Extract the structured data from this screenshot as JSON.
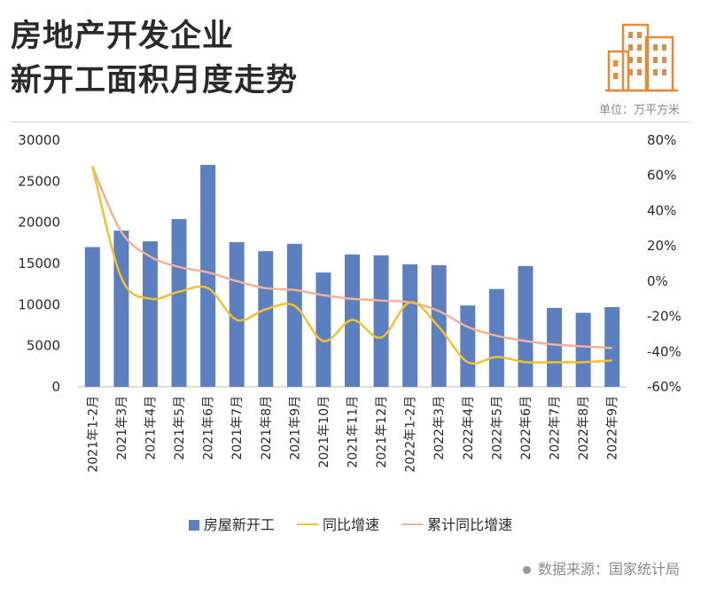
{
  "header": {
    "title_line1": "房地产开发企业",
    "title_line2": "新开工面积月度走势",
    "unit": "单位：万平方米"
  },
  "footer": {
    "source": "数据来源：国家统计局"
  },
  "colors": {
    "bar": "#5b7fbf",
    "yoy": "#f2c12e",
    "cumulative": "#f0b29a",
    "logo": "#e58a3a"
  },
  "chart_data": {
    "type": "bar",
    "categories": [
      "2021年1-2月",
      "2021年3月",
      "2021年4月",
      "2021年5月",
      "2021年6月",
      "2021年7月",
      "2021年8月",
      "2021年9月",
      "2021年10月",
      "2021年11月",
      "2021年12月",
      "2022年1-2月",
      "2022年3月",
      "2022年4月",
      "2022年5月",
      "2022年6月",
      "2022年7月",
      "2022年8月",
      "2022年9月"
    ],
    "series": [
      {
        "name": "房屋新开工",
        "type": "bar",
        "axis": "left",
        "values": [
          17000,
          19000,
          17700,
          20400,
          27000,
          17600,
          16500,
          17400,
          13900,
          16100,
          16000,
          14900,
          14800,
          9900,
          11900,
          14700,
          9600,
          9000,
          9700
        ]
      },
      {
        "name": "同比增速",
        "type": "line",
        "axis": "right",
        "values": [
          65,
          2,
          -10,
          -6,
          -4,
          -22,
          -16,
          -14,
          -34,
          -22,
          -32,
          -12,
          -26,
          -46,
          -43,
          -46,
          -46,
          -46,
          -45
        ]
      },
      {
        "name": "累计同比增速",
        "type": "line",
        "axis": "right",
        "values": [
          65,
          28,
          14,
          8,
          5,
          0,
          -4,
          -5,
          -8,
          -10,
          -11,
          -12,
          -17,
          -26,
          -31,
          -34,
          -36,
          -37,
          -38
        ]
      }
    ],
    "left_axis": {
      "ylim": [
        0,
        30000
      ],
      "ticks": [
        "30000",
        "25000",
        "20000",
        "15000",
        "10000",
        "5000",
        "0"
      ]
    },
    "right_axis": {
      "ylim": [
        -60,
        80
      ],
      "ticks": [
        "80%",
        "60%",
        "40%",
        "20%",
        "0%",
        "-20%",
        "-40%",
        "-60%"
      ]
    },
    "legend": [
      "房屋新开工",
      "同比增速",
      "累计同比增速"
    ],
    "legend_position": "bottom",
    "grid": false
  }
}
